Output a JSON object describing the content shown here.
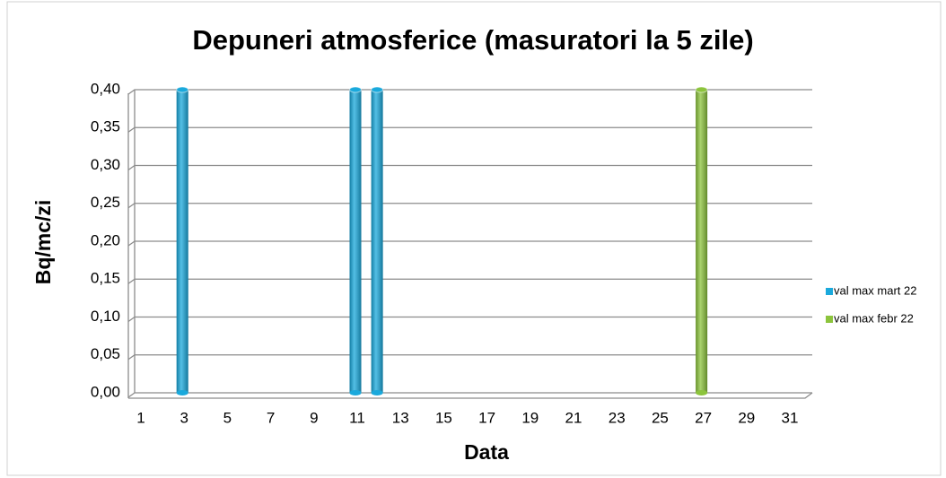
{
  "chart_data": {
    "type": "bar",
    "title": "Depuneri atmosferice (masuratori la 5 zile)",
    "x_label": "Data",
    "y_label": "Bq/mc/zi",
    "categories": [
      1,
      null,
      3,
      null,
      5,
      null,
      7,
      null,
      9,
      null,
      11,
      null,
      13,
      null,
      15,
      null,
      17,
      null,
      19,
      null,
      21,
      null,
      23,
      null,
      25,
      null,
      27,
      null,
      29,
      null,
      31
    ],
    "series": [
      {
        "name": "val max mart 22",
        "color": "#1aa9dc",
        "values": [
          0,
          0,
          0.4,
          0,
          0,
          0,
          0,
          0,
          0,
          0,
          0.4,
          0.4,
          0,
          0,
          0,
          0,
          0,
          0,
          0,
          0,
          0,
          0,
          0,
          0,
          0,
          0,
          0,
          0,
          0,
          0,
          0
        ]
      },
      {
        "name": "val max febr 22",
        "color": "#8cc43c",
        "values": [
          0,
          0,
          0,
          0,
          0,
          0,
          0,
          0,
          0,
          0,
          0,
          0,
          0,
          0,
          0,
          0,
          0,
          0,
          0,
          0,
          0,
          0,
          0,
          0,
          0,
          0,
          0.4,
          0,
          0,
          0,
          0
        ]
      }
    ],
    "ylim": [
      0,
      0.4
    ],
    "yticks": [
      {
        "value": 0,
        "label": "0,00"
      },
      {
        "value": 0.05,
        "label": "0,05"
      },
      {
        "value": 0.1,
        "label": "0,10"
      },
      {
        "value": 0.15,
        "label": "0,15"
      },
      {
        "value": 0.2,
        "label": "0,20"
      },
      {
        "value": 0.25,
        "label": "0,25"
      },
      {
        "value": 0.3,
        "label": "0,30"
      },
      {
        "value": 0.35,
        "label": "0,35"
      },
      {
        "value": 0.4,
        "label": "0,40"
      }
    ],
    "grid": true,
    "legend": "right"
  }
}
